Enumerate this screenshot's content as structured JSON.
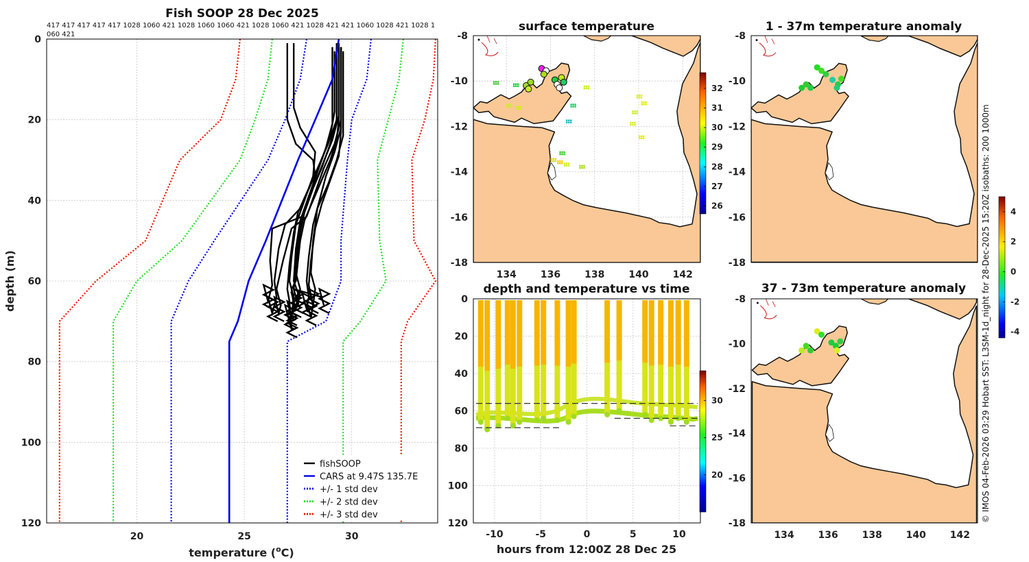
{
  "profile_chart": {
    "type": "line",
    "title": "Fish SOOP 28 Dec 2025",
    "xlabel": "temperature (°C)",
    "xlabel_prefix": "temperature (",
    "xlabel_sup": "o",
    "xlabel_suffix": "C)",
    "ylabel": "depth (m)",
    "xlim": [
      15.8,
      34
    ],
    "ylim": [
      120,
      0
    ],
    "xticks": [
      20,
      25,
      30
    ],
    "yticks": [
      0,
      20,
      40,
      60,
      80,
      100,
      120
    ],
    "header_ids_line1": "417 417 417 417 417 1028 1060 421 1028 1060 1060 421 1028 1060 421 1028 421 421 1060 1028 421 1028 1",
    "header_ids_line2": "060 421",
    "depth_levels": [
      0,
      10,
      20,
      30,
      50,
      60,
      70,
      75,
      120
    ],
    "cars_mean": [
      29.4,
      29.1,
      28.3,
      27.5,
      26.0,
      25.2,
      24.7,
      24.3,
      24.3
    ],
    "plus1": [
      30.9,
      30.7,
      30.0,
      29.8,
      29.5,
      29.5,
      28.8,
      27.0,
      27.0
    ],
    "minus1": [
      27.9,
      27.6,
      26.9,
      26.1,
      23.6,
      22.4,
      21.6,
      21.6,
      21.6
    ],
    "plus2": [
      32.4,
      32.2,
      31.7,
      31.2,
      31.3,
      31.6,
      30.4,
      29.6,
      29.6
    ],
    "minus2": [
      26.3,
      26.1,
      25.5,
      24.8,
      22.1,
      20.0,
      18.9,
      18.9,
      18.9
    ],
    "plus3": [
      33.9,
      33.8,
      33.4,
      32.8,
      32.9,
      33.9,
      32.6,
      32.3,
      32.3
    ],
    "minus3": [
      24.8,
      24.6,
      23.9,
      22.0,
      20.4,
      18.1,
      16.4,
      16.4,
      16.4
    ],
    "fishsoop_profiles": [
      {
        "depth": [
          1,
          20,
          25,
          30,
          35,
          40,
          45,
          50,
          60,
          62,
          66,
          70
        ],
        "temp": [
          29.4,
          29.4,
          29.3,
          29.0,
          28.6,
          28.2,
          27.8,
          27.6,
          27.4,
          27.2,
          27.3,
          27.1
        ]
      },
      {
        "depth": [
          2,
          20,
          26,
          32,
          38,
          44,
          47,
          55,
          62,
          66,
          68
        ],
        "temp": [
          29.5,
          29.5,
          29.2,
          28.7,
          28.3,
          27.9,
          27.2,
          26.8,
          26.5,
          26.7,
          26.6
        ]
      },
      {
        "depth": [
          3,
          18,
          24,
          30,
          36,
          42,
          46,
          52,
          60,
          64,
          68
        ],
        "temp": [
          29.2,
          29.2,
          29.0,
          28.6,
          28.1,
          27.6,
          26.9,
          26.6,
          26.4,
          26.5,
          26.3
        ]
      },
      {
        "depth": [
          2,
          22,
          28,
          34,
          40,
          46,
          54,
          60,
          64,
          67
        ],
        "temp": [
          29.5,
          29.5,
          29.2,
          28.8,
          28.5,
          28.2,
          28.0,
          27.9,
          28.0,
          27.9
        ]
      },
      {
        "depth": [
          1,
          20,
          26,
          31,
          37,
          43,
          48,
          56,
          62,
          65,
          72
        ],
        "temp": [
          29.3,
          29.3,
          28.9,
          28.5,
          28.0,
          27.5,
          27.3,
          27.1,
          27.0,
          27.1,
          27.2
        ]
      },
      {
        "depth": [
          3,
          24,
          30,
          36,
          42,
          50,
          58,
          62,
          66
        ],
        "temp": [
          29.6,
          29.6,
          29.3,
          28.9,
          28.4,
          28.2,
          28.1,
          28.3,
          28.2
        ]
      },
      {
        "depth": [
          2,
          19,
          25,
          33,
          39,
          45,
          52,
          60,
          63,
          67
        ],
        "temp": [
          29.4,
          29.4,
          29.1,
          28.5,
          28.0,
          27.6,
          27.4,
          27.3,
          27.5,
          27.4
        ]
      },
      {
        "depth": [
          2,
          21,
          27,
          33,
          39,
          44,
          47,
          55,
          61,
          65
        ],
        "temp": [
          29.1,
          29.1,
          28.8,
          28.4,
          28.0,
          27.7,
          26.3,
          26.2,
          26.3,
          26.1
        ]
      },
      {
        "depth": [
          1,
          17,
          22,
          28,
          34,
          40,
          46,
          54,
          60,
          64,
          69
        ],
        "temp": [
          27.3,
          27.3,
          27.6,
          28.3,
          28.2,
          27.8,
          27.4,
          27.2,
          27.1,
          27.3,
          27.2
        ]
      },
      {
        "depth": [
          1,
          20,
          26,
          30,
          34,
          40,
          44,
          50,
          58,
          62,
          66
        ],
        "temp": [
          27.0,
          27.0,
          27.4,
          28.2,
          28.3,
          28.0,
          27.7,
          27.5,
          27.4,
          27.6,
          27.5
        ]
      },
      {
        "depth": [
          2,
          23,
          29,
          35,
          41,
          47,
          55,
          61,
          66,
          69
        ],
        "temp": [
          29.5,
          29.5,
          29.4,
          29.0,
          28.6,
          28.3,
          28.1,
          28.0,
          28.2,
          28.1
        ]
      },
      {
        "depth": [
          2,
          20,
          26,
          32,
          37,
          43,
          48,
          56,
          62,
          64,
          66
        ],
        "temp": [
          29.3,
          29.3,
          29.0,
          28.6,
          28.2,
          27.8,
          27.6,
          27.4,
          27.3,
          28.6,
          28.7
        ]
      }
    ],
    "legend": [
      {
        "label": "fishSOOP",
        "color": "#000000",
        "style": "solid"
      },
      {
        "label": "CARS at 9.47S 135.7E",
        "color": "#0000ee",
        "style": "solid"
      },
      {
        "label": "+/- 1 std dev",
        "color": "#0000ee",
        "style": "dotted"
      },
      {
        "label": "+/- 2 std dev",
        "color": "#22dd22",
        "style": "dotted"
      },
      {
        "label": "+/- 3 std dev",
        "color": "#ee1100",
        "style": "dotted"
      }
    ]
  },
  "maps": [
    {
      "id": "surface",
      "title": "surface temperature",
      "show_xticks": true,
      "show_colorbar": true
    },
    {
      "id": "anom1",
      "title": "1 - 37m temperature anomaly",
      "show_xticks": false,
      "show_colorbar": false
    },
    {
      "id": "anom2",
      "title": "37 - 73m temperature anomaly",
      "show_xticks": true,
      "show_colorbar": false
    }
  ],
  "map_axes": {
    "lon_range": [
      132.5,
      142.8
    ],
    "lat_range": [
      -18,
      -8
    ],
    "lon_ticks": [
      134,
      136,
      138,
      140,
      142
    ],
    "lat_ticks": [
      -8,
      -10,
      -12,
      -14,
      -16,
      -18
    ]
  },
  "surface_colorbar": {
    "ticks": [
      26,
      27,
      28,
      29,
      30,
      31,
      32
    ],
    "range": [
      25.6,
      32.8
    ]
  },
  "anomaly_colorbar": {
    "ticks": [
      -4,
      -2,
      0,
      2,
      4
    ],
    "range": [
      -4.4,
      5.0
    ]
  },
  "time_colorbar": {
    "ticks": [
      20,
      25,
      30
    ],
    "range": [
      15,
      34
    ]
  },
  "time_chart": {
    "type": "scatter",
    "title": "depth and temperature vs time",
    "xlabel": "hours from 12:00Z 28 Dec 25",
    "xlim": [
      -12.3,
      12.3
    ],
    "ylim": [
      120,
      0
    ],
    "xticks": [
      -10,
      -5,
      0,
      5,
      10
    ],
    "yticks": [
      0,
      20,
      40,
      60,
      80,
      100,
      120
    ],
    "casts": [
      {
        "hour": -11.5,
        "max_depth": 66
      },
      {
        "hour": -10.8,
        "max_depth": 70
      },
      {
        "hour": -9.6,
        "max_depth": 68
      },
      {
        "hour": -8.6,
        "max_depth": 64
      },
      {
        "hour": -8.0,
        "max_depth": 68
      },
      {
        "hour": -7.3,
        "max_depth": 66
      },
      {
        "hour": -5.4,
        "max_depth": 65
      },
      {
        "hour": -4.7,
        "max_depth": 64
      },
      {
        "hour": -3.2,
        "max_depth": 65
      },
      {
        "hour": -2.0,
        "max_depth": 66
      },
      {
        "hour": -1.4,
        "max_depth": 63
      },
      {
        "hour": 2.2,
        "max_depth": 62
      },
      {
        "hour": 3.5,
        "max_depth": 60
      },
      {
        "hour": 6.3,
        "max_depth": 62
      },
      {
        "hour": 7.0,
        "max_depth": 65
      },
      {
        "hour": 8.0,
        "max_depth": 64
      },
      {
        "hour": 9.1,
        "max_depth": 66
      },
      {
        "hour": 9.9,
        "max_depth": 64
      },
      {
        "hour": 10.8,
        "max_depth": 66
      }
    ],
    "bottom_segments": [
      {
        "x0": -12,
        "x1": 12,
        "depth": 56
      },
      {
        "x0": -12,
        "x1": -3,
        "depth": 69
      },
      {
        "x0": 3,
        "x1": 12,
        "depth": 64
      },
      {
        "x0": 9,
        "x1": 12,
        "depth": 68
      }
    ]
  },
  "credit": "© IMOS 04-Feb-2026 03:29 Hobart SST: L3SM-1d_night for 28-Dec-2025 15:20Z isobaths: 200  1000m",
  "colors": {
    "land": "#f9c896",
    "cars": "#0000ee",
    "std1": "#0000ee",
    "std2": "#22dd22",
    "std3": "#ee1100",
    "profile": "#000000"
  }
}
